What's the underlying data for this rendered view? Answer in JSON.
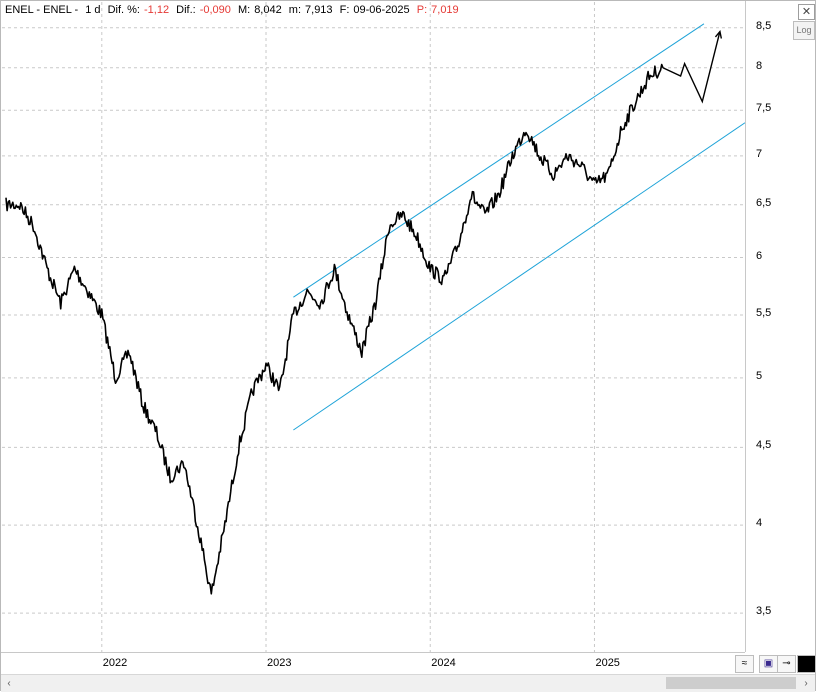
{
  "header": {
    "symbol": "ENEL - ENEL -",
    "timeframe": "1 d",
    "diff_pct_label": "Dif. %:",
    "diff_pct_value": "-1,12",
    "diff_label": "Dif.:",
    "diff_value": "-0,090",
    "max_label": "M:",
    "max_value": "8,042",
    "min_label": "m:",
    "min_value": "7,913",
    "date_label": "F:",
    "date_value": "09-06-2025",
    "price_label": "P:",
    "price_value": "7,019"
  },
  "controls": {
    "log_label": "Log",
    "close_icon": "close-icon",
    "toolbar_icons": [
      "wave-icon",
      "save-icon",
      "pin-icon",
      "color-square-icon"
    ]
  },
  "colors": {
    "price": "#000000",
    "channel": "#1ea3d8",
    "grid": "#c9c9c9",
    "negative": "#e53935"
  },
  "chart_data": {
    "type": "line",
    "y_scale": "log",
    "ylim": [
      3.3,
      8.6
    ],
    "y_ticks": [
      3.5,
      4,
      4.5,
      5,
      5.5,
      6,
      6.5,
      7,
      7.5,
      8,
      8.5
    ],
    "y_tick_labels": [
      "3,5",
      "4",
      "4,5",
      "5",
      "5,5",
      "6",
      "6,5",
      "7",
      "7,5",
      "8",
      "8,5"
    ],
    "x_tick_labels": [
      "2022",
      "2023",
      "2024",
      "2025"
    ],
    "x_ticks": [
      "2022-01",
      "2023-01",
      "2024-01",
      "2025-01"
    ],
    "xlim": [
      "2021-06",
      "2025-12"
    ],
    "grid": true,
    "series": [
      {
        "x": [
          "2021-06",
          "2021-07",
          "2021-08",
          "2021-09",
          "2021-10",
          "2021-11",
          "2021-12",
          "2022-01",
          "2022-02",
          "2022-03",
          "2022-04",
          "2022-05",
          "2022-06",
          "2022-07",
          "2022-08",
          "2022-09",
          "2022-10",
          "2022-11",
          "2022-12",
          "2023-01",
          "2023-02",
          "2023-03",
          "2023-04",
          "2023-05",
          "2023-06",
          "2023-07",
          "2023-08",
          "2023-09",
          "2023-10",
          "2023-11",
          "2023-12",
          "2024-01",
          "2024-02",
          "2024-03",
          "2024-04",
          "2024-05",
          "2024-06",
          "2024-07",
          "2024-08",
          "2024-09",
          "2024-10",
          "2024-11",
          "2024-12",
          "2025-01",
          "2025-02",
          "2025-03",
          "2025-04",
          "2025-05",
          "2025-06"
        ],
        "values": [
          6.5,
          6.5,
          6.3,
          5.9,
          5.6,
          5.9,
          5.7,
          5.5,
          5.0,
          5.2,
          4.8,
          4.6,
          4.3,
          4.4,
          4.0,
          3.6,
          4.0,
          4.5,
          4.9,
          5.1,
          4.9,
          5.5,
          5.7,
          5.6,
          5.9,
          5.5,
          5.2,
          5.6,
          6.3,
          6.4,
          6.2,
          5.9,
          5.8,
          6.1,
          6.6,
          6.4,
          6.6,
          7.0,
          7.3,
          7.0,
          6.8,
          7.0,
          6.9,
          6.7,
          6.8,
          7.3,
          7.6,
          7.9,
          8.0
        ]
      }
    ],
    "channel_lines": [
      {
        "from": [
          "2023-03",
          5.65
        ],
        "to": [
          "2025-09",
          8.55
        ]
      },
      {
        "from": [
          "2023-03",
          4.62
        ],
        "to": [
          "2025-12",
          7.36
        ]
      }
    ],
    "projection": {
      "x": [
        "2025-06",
        "2025-07",
        "2025-07",
        "2025-08",
        "2025-09"
      ],
      "values": [
        8.0,
        7.9,
        8.05,
        7.6,
        8.45
      ]
    }
  }
}
